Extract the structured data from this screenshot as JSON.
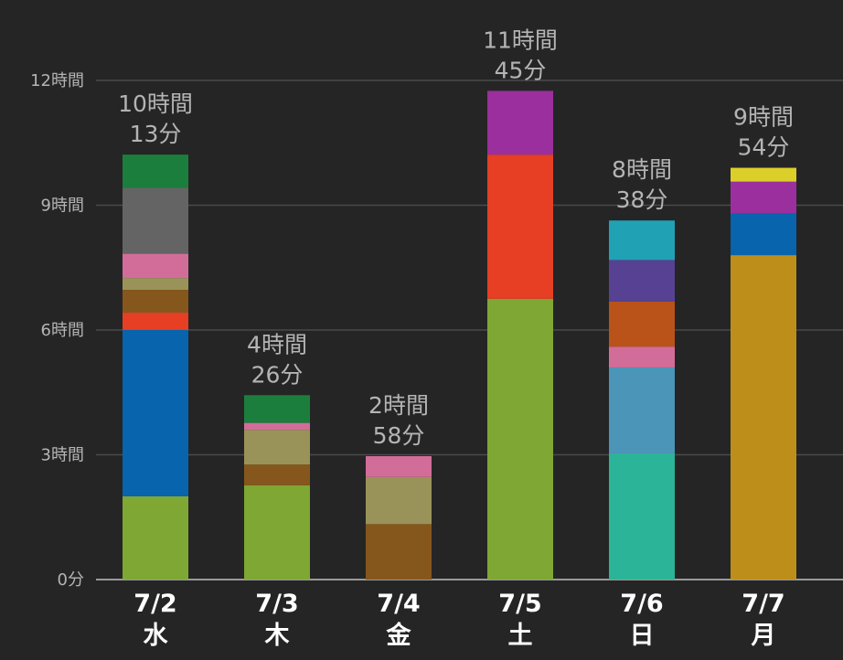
{
  "chart_data": {
    "type": "bar",
    "stacked": true,
    "grid": true,
    "ylim": [
      0,
      720
    ],
    "y_ticks": [
      {
        "value": 0,
        "label": "0分"
      },
      {
        "value": 180,
        "label": "3時間"
      },
      {
        "value": 360,
        "label": "6時間"
      },
      {
        "value": 540,
        "label": "9時間"
      },
      {
        "value": 720,
        "label": "12時間"
      }
    ],
    "categories": [
      {
        "date": "7/2",
        "weekday": "水",
        "total_hours": "10時間",
        "total_minutes": "13分",
        "total": 613
      },
      {
        "date": "7/3",
        "weekday": "木",
        "total_hours": "4時間",
        "total_minutes": "26分",
        "total": 266
      },
      {
        "date": "7/4",
        "weekday": "金",
        "total_hours": "2時間",
        "total_minutes": "58分",
        "total": 178
      },
      {
        "date": "7/5",
        "weekday": "土",
        "total_hours": "11時間",
        "total_minutes": "45分",
        "total": 705
      },
      {
        "date": "7/6",
        "weekday": "日",
        "total_hours": "8時間",
        "total_minutes": "38分",
        "total": 518
      },
      {
        "date": "7/7",
        "weekday": "月",
        "total_hours": "9時間",
        "total_minutes": "54分",
        "total": 594
      }
    ],
    "segments": [
      [
        {
          "value": 120,
          "color": "#7ea733"
        },
        {
          "value": 240,
          "color": "#0764ad"
        },
        {
          "value": 25,
          "color": "#e63f23"
        },
        {
          "value": 33,
          "color": "#86571c"
        },
        {
          "value": 17,
          "color": "#9a9359"
        },
        {
          "value": 35,
          "color": "#d26d9a"
        },
        {
          "value": 95,
          "color": "#646464"
        },
        {
          "value": 48,
          "color": "#1c7e3c"
        }
      ],
      [
        {
          "value": 136,
          "color": "#7ea733"
        },
        {
          "value": 30,
          "color": "#86571c"
        },
        {
          "value": 50,
          "color": "#9a9359"
        },
        {
          "value": 10,
          "color": "#d26d9a"
        },
        {
          "value": 40,
          "color": "#1c7e3c"
        }
      ],
      [
        {
          "value": 80,
          "color": "#86571c"
        },
        {
          "value": 68,
          "color": "#9a9359"
        },
        {
          "value": 30,
          "color": "#d26d9a"
        }
      ],
      [
        {
          "value": 405,
          "color": "#7ea733"
        },
        {
          "value": 208,
          "color": "#e63f23"
        },
        {
          "value": 92,
          "color": "#9b2f9d"
        }
      ],
      [
        {
          "value": 182,
          "color": "#2bb497"
        },
        {
          "value": 124,
          "color": "#4b95b8"
        },
        {
          "value": 30,
          "color": "#d26d9a"
        },
        {
          "value": 65,
          "color": "#b9531a"
        },
        {
          "value": 60,
          "color": "#574193"
        },
        {
          "value": 57,
          "color": "#21a1b4"
        }
      ],
      [
        {
          "value": 468,
          "color": "#be8e1b"
        },
        {
          "value": 60,
          "color": "#0764ad"
        },
        {
          "value": 46,
          "color": "#9b2f9d"
        },
        {
          "value": 20,
          "color": "#ddcf29"
        }
      ]
    ]
  }
}
